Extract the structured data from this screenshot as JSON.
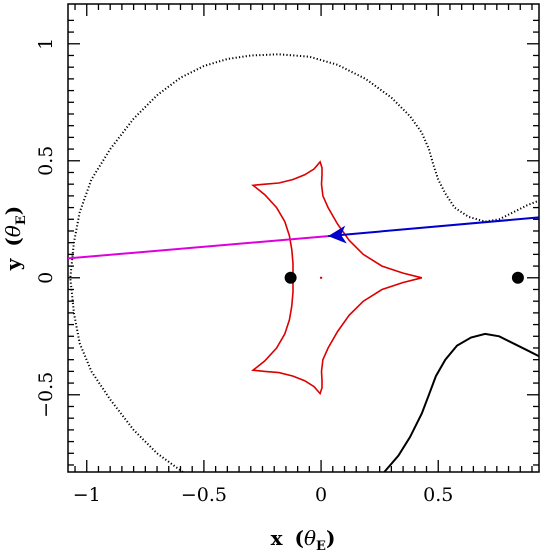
{
  "chart_data": {
    "type": "line",
    "xlabel": "x",
    "xlabel_unit": "θ",
    "xlabel_unit_sub": "E",
    "ylabel": "y",
    "ylabel_unit": "θ",
    "ylabel_unit_sub": "E",
    "xlim": [
      -1.08,
      0.93
    ],
    "ylim": [
      -0.83,
      1.17
    ],
    "xticks": [
      {
        "value": -1,
        "label": "−1"
      },
      {
        "value": -0.5,
        "label": "−0.5"
      },
      {
        "value": 0,
        "label": "0"
      },
      {
        "value": 0.5,
        "label": "0.5"
      }
    ],
    "yticks": [
      {
        "value": -0.5,
        "label": "−0.5"
      },
      {
        "value": 0,
        "label": "0"
      },
      {
        "value": 0.5,
        "label": "0.5"
      },
      {
        "value": 1,
        "label": "1"
      }
    ],
    "colors": {
      "caustic": "#dd0000",
      "critical": "#000000",
      "trajectory_future": "#dd00dd",
      "trajectory_past": "#0000cc",
      "lens": "#000000"
    },
    "caustic": [
      [
        -0.004,
        0.495
      ],
      [
        0.004,
        0.47
      ],
      [
        0.004,
        0.44
      ],
      [
        0.002,
        0.4
      ],
      [
        0.008,
        0.35
      ],
      [
        0.03,
        0.3
      ],
      [
        0.07,
        0.23
      ],
      [
        0.12,
        0.16
      ],
      [
        0.18,
        0.1
      ],
      [
        0.26,
        0.05
      ],
      [
        0.35,
        0.02
      ],
      [
        0.43,
        0.0
      ],
      [
        0.35,
        -0.02
      ],
      [
        0.26,
        -0.05
      ],
      [
        0.18,
        -0.1
      ],
      [
        0.12,
        -0.16
      ],
      [
        0.07,
        -0.23
      ],
      [
        0.03,
        -0.3
      ],
      [
        0.008,
        -0.35
      ],
      [
        0.002,
        -0.4
      ],
      [
        0.004,
        -0.44
      ],
      [
        0.004,
        -0.47
      ],
      [
        -0.004,
        -0.495
      ],
      [
        -0.03,
        -0.465
      ],
      [
        -0.07,
        -0.44
      ],
      [
        -0.12,
        -0.42
      ],
      [
        -0.18,
        -0.405
      ],
      [
        -0.24,
        -0.4
      ],
      [
        -0.29,
        -0.395
      ],
      [
        -0.24,
        -0.355
      ],
      [
        -0.19,
        -0.3
      ],
      [
        -0.155,
        -0.24
      ],
      [
        -0.135,
        -0.18
      ],
      [
        -0.125,
        -0.12
      ],
      [
        -0.12,
        -0.06
      ],
      [
        -0.12,
        0.0
      ],
      [
        -0.12,
        0.06
      ],
      [
        -0.125,
        0.12
      ],
      [
        -0.135,
        0.18
      ],
      [
        -0.155,
        0.24
      ],
      [
        -0.19,
        0.3
      ],
      [
        -0.24,
        0.355
      ],
      [
        -0.29,
        0.395
      ],
      [
        -0.24,
        0.4
      ],
      [
        -0.18,
        0.405
      ],
      [
        -0.12,
        0.42
      ],
      [
        -0.07,
        0.44
      ],
      [
        -0.03,
        0.465
      ],
      [
        -0.004,
        0.495
      ]
    ],
    "critical_outer": [
      [
        -0.59,
        -0.83
      ],
      [
        -0.7,
        -0.75
      ],
      [
        -0.8,
        -0.65
      ],
      [
        -0.9,
        -0.52
      ],
      [
        -0.98,
        -0.4
      ],
      [
        -1.03,
        -0.28
      ],
      [
        -1.055,
        -0.15
      ],
      [
        -1.07,
        0.0
      ],
      [
        -1.055,
        0.15
      ],
      [
        -1.03,
        0.28
      ],
      [
        -0.98,
        0.42
      ],
      [
        -0.9,
        0.55
      ],
      [
        -0.8,
        0.68
      ],
      [
        -0.7,
        0.78
      ],
      [
        -0.6,
        0.855
      ],
      [
        -0.5,
        0.905
      ],
      [
        -0.4,
        0.935
      ],
      [
        -0.3,
        0.95
      ],
      [
        -0.18,
        0.955
      ],
      [
        -0.05,
        0.945
      ],
      [
        0.07,
        0.91
      ],
      [
        0.19,
        0.85
      ],
      [
        0.3,
        0.77
      ],
      [
        0.38,
        0.69
      ],
      [
        0.43,
        0.62
      ],
      [
        0.46,
        0.55
      ],
      [
        0.48,
        0.48
      ],
      [
        0.5,
        0.42
      ],
      [
        0.53,
        0.36
      ],
      [
        0.57,
        0.3
      ],
      [
        0.63,
        0.26
      ],
      [
        0.7,
        0.24
      ],
      [
        0.76,
        0.25
      ],
      [
        0.82,
        0.28
      ],
      [
        0.88,
        0.31
      ],
      [
        0.93,
        0.33
      ]
    ],
    "critical_lower": [
      [
        0.27,
        -0.83
      ],
      [
        0.33,
        -0.76
      ],
      [
        0.38,
        -0.68
      ],
      [
        0.43,
        -0.58
      ],
      [
        0.46,
        -0.5
      ],
      [
        0.49,
        -0.42
      ],
      [
        0.53,
        -0.35
      ],
      [
        0.58,
        -0.29
      ],
      [
        0.64,
        -0.255
      ],
      [
        0.7,
        -0.24
      ],
      [
        0.76,
        -0.25
      ],
      [
        0.82,
        -0.28
      ],
      [
        0.88,
        -0.31
      ],
      [
        0.93,
        -0.335
      ]
    ],
    "trajectory_future": [
      [
        0.03,
        0.178
      ],
      [
        -1.08,
        0.083
      ]
    ],
    "trajectory_past": [
      [
        0.93,
        0.258
      ],
      [
        0.03,
        0.178
      ]
    ],
    "lenses": [
      {
        "x": -0.13,
        "y": 0.0
      },
      {
        "x": 0.84,
        "y": 0.0
      }
    ],
    "source_point": {
      "x": 0.0,
      "y": 0.0
    }
  }
}
